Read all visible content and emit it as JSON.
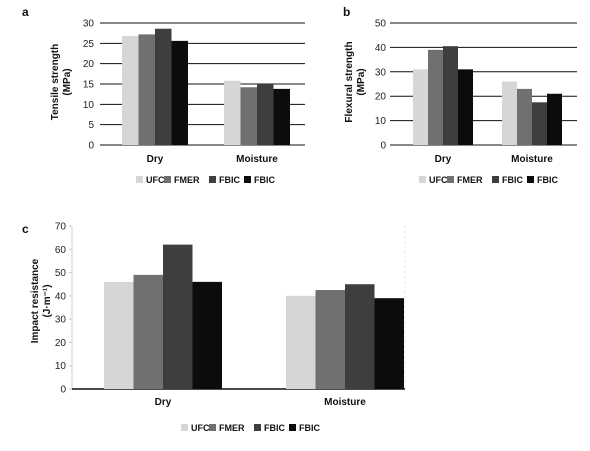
{
  "chart_data": [
    {
      "type": "bar",
      "panel_label": "a",
      "categories": [
        "Dry",
        "Moisture"
      ],
      "series": [
        {
          "name": "UFC",
          "values": [
            26.8,
            15.8
          ]
        },
        {
          "name": "FMER",
          "values": [
            27.2,
            14.2
          ]
        },
        {
          "name": "FBIC",
          "values": [
            28.6,
            15.0
          ]
        },
        {
          "name": "FBIC",
          "values": [
            25.6,
            13.8
          ]
        }
      ],
      "ylabel": [
        "Tensile strength",
        "(MPa)"
      ],
      "ylim": [
        0,
        30
      ],
      "yticks": [
        0,
        5,
        10,
        15,
        20,
        25,
        30
      ],
      "grid": true,
      "legend": "bottom"
    },
    {
      "type": "bar",
      "panel_label": "b",
      "categories": [
        "Dry",
        "Moisture"
      ],
      "series": [
        {
          "name": "UFC",
          "values": [
            31,
            26
          ]
        },
        {
          "name": "FMER",
          "values": [
            39,
            23
          ]
        },
        {
          "name": "FBIC",
          "values": [
            40.5,
            17.5
          ]
        },
        {
          "name": "FBIC",
          "values": [
            31,
            21
          ]
        }
      ],
      "ylabel": [
        "Flexural strength",
        "(MPa)"
      ],
      "ylim": [
        0,
        50
      ],
      "yticks": [
        0,
        10,
        20,
        30,
        40,
        50
      ],
      "grid": true,
      "legend": "bottom"
    },
    {
      "type": "bar",
      "panel_label": "c",
      "categories": [
        "Dry",
        "Moisture"
      ],
      "series": [
        {
          "name": "UFC",
          "values": [
            46,
            40
          ]
        },
        {
          "name": "FMER",
          "values": [
            49,
            42.5
          ]
        },
        {
          "name": "FBIC",
          "values": [
            62,
            45
          ]
        },
        {
          "name": "FBIC",
          "values": [
            46,
            39
          ]
        }
      ],
      "ylabel": [
        "Impact resistance",
        "(J·m⁻¹)"
      ],
      "ylim": [
        0,
        70
      ],
      "yticks": [
        0,
        10,
        20,
        30,
        40,
        50,
        60,
        70
      ],
      "grid": false,
      "legend": "bottom"
    }
  ],
  "colors": [
    "#d6d6d6",
    "#707070",
    "#3e3e3e",
    "#0c0c0c"
  ]
}
